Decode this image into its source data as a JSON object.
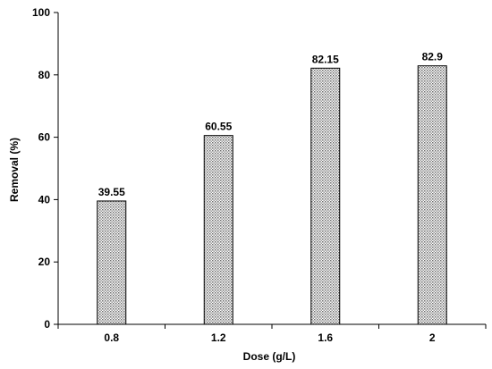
{
  "chart_data": {
    "type": "bar",
    "categories": [
      "0.8",
      "1.2",
      "1.6",
      "2"
    ],
    "values": [
      39.55,
      60.55,
      82.15,
      82.9
    ],
    "data_labels": [
      "39.55",
      "60.55",
      "82.15",
      "82.9"
    ],
    "xlabel": "Dose (g/L)",
    "ylabel": "Removal (%)",
    "ylim": [
      0,
      100
    ],
    "yticks": [
      "0",
      "20",
      "40",
      "60",
      "80",
      "100"
    ],
    "grid": false,
    "legend": "none",
    "bar_fill": "dotted gray pattern",
    "bar_stroke": "#000000"
  }
}
